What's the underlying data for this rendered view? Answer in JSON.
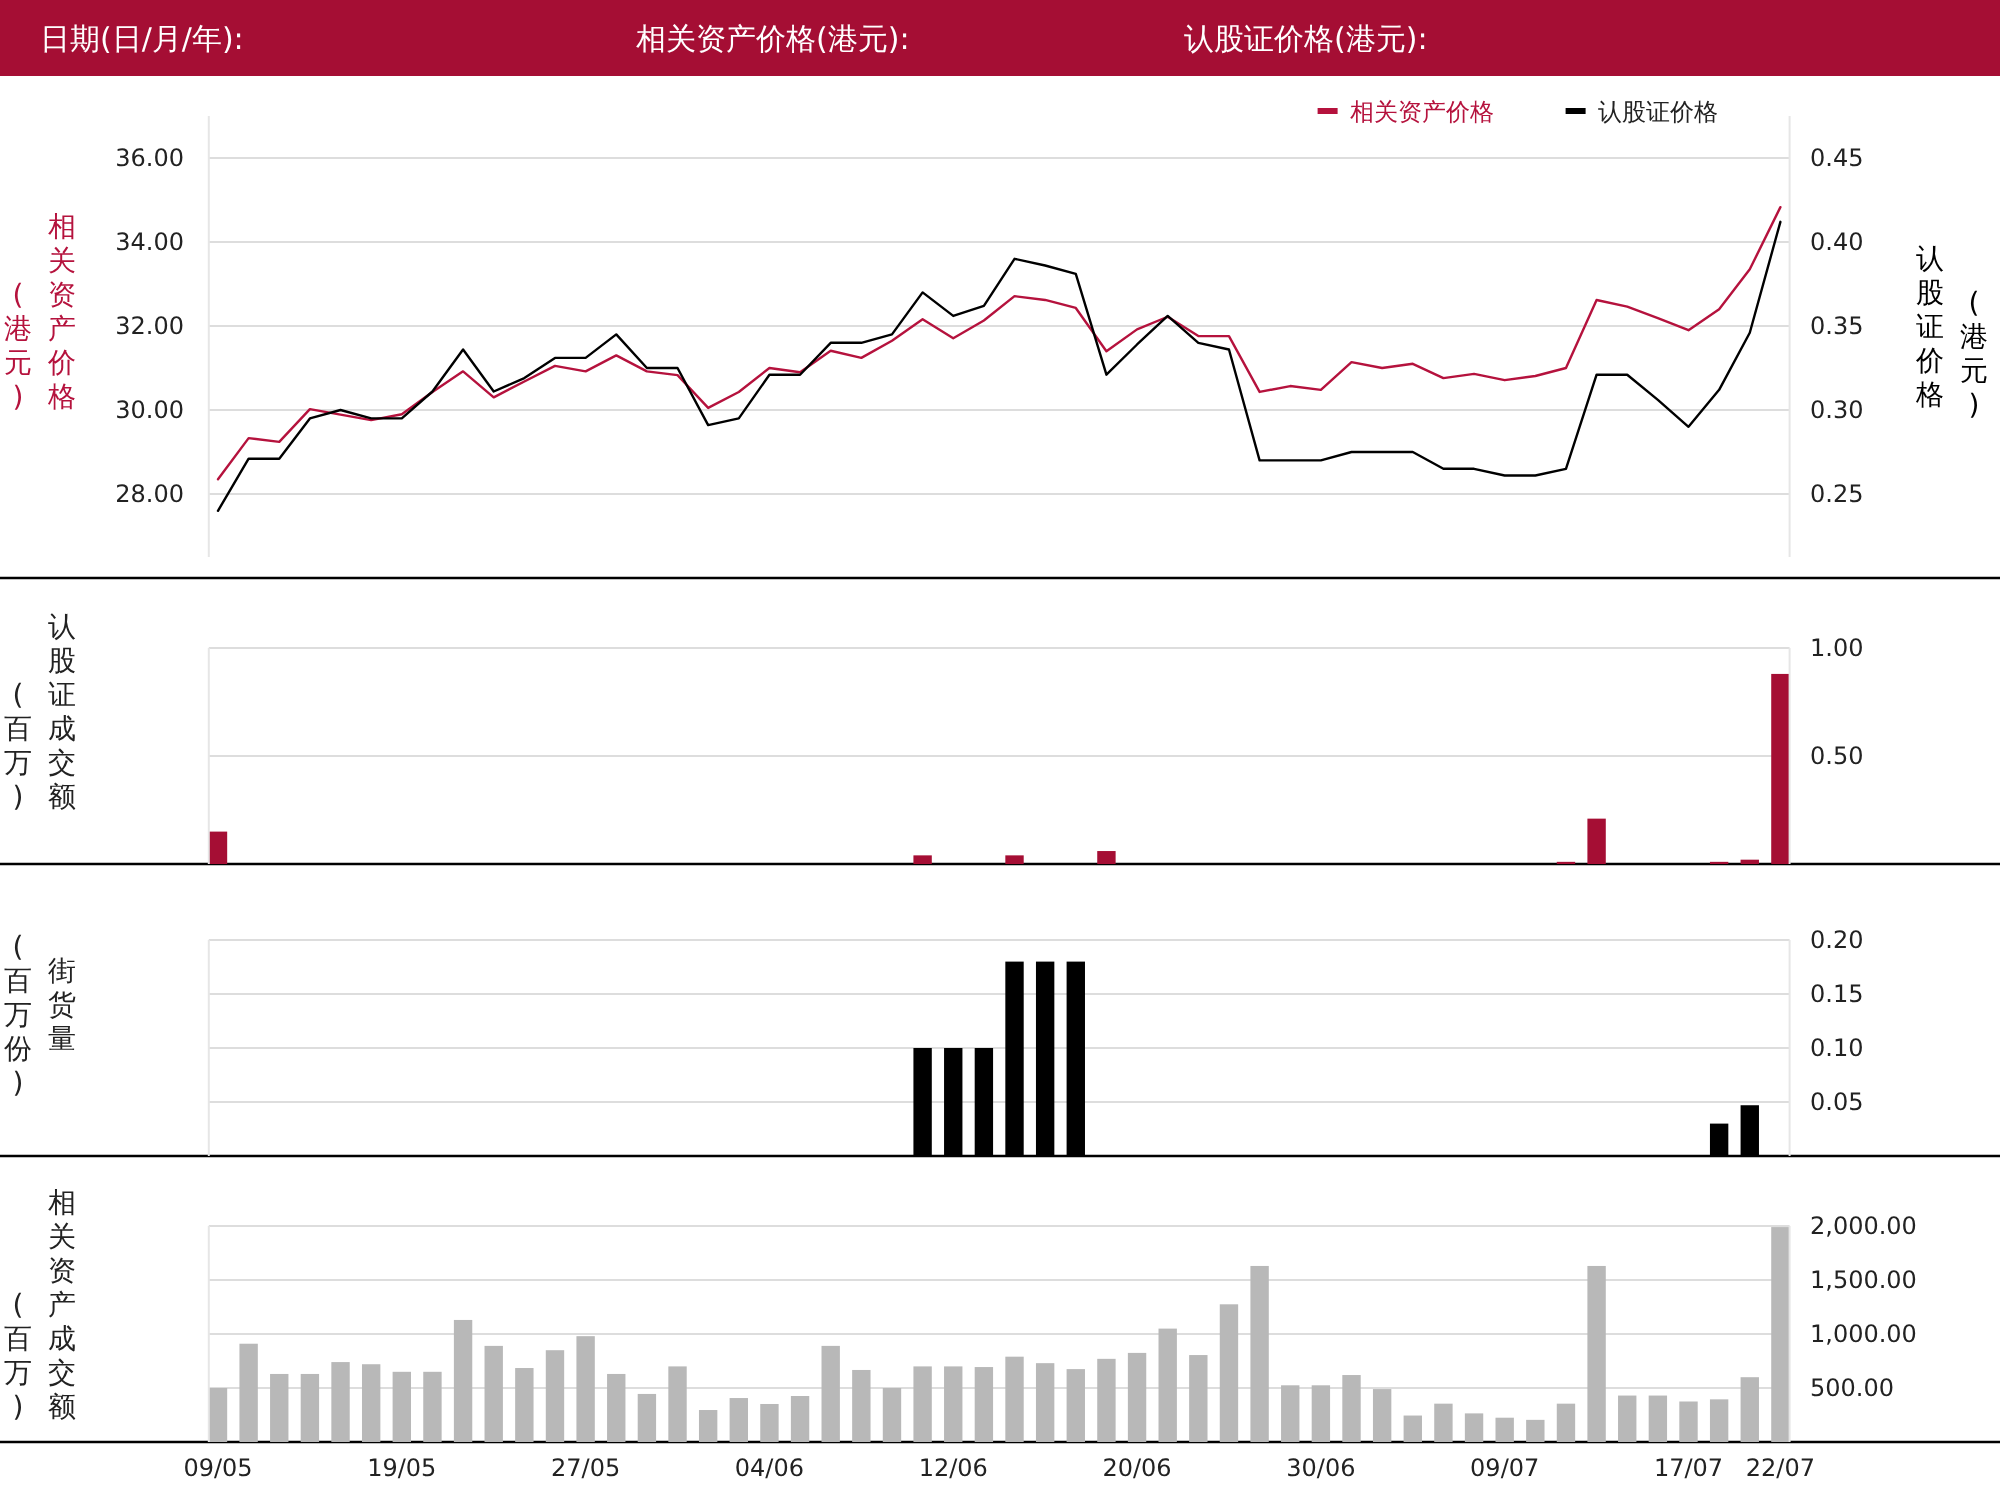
{
  "chart_data": [
    {
      "type": "line",
      "annotations": [
        "日期(日/月/年):",
        "相关资产价格(港元):",
        "认股证价格(港元):"
      ],
      "ylabel": "相关资产价格(港元)",
      "y2label": "认股证价格(港元)",
      "categories": [
        null,
        null,
        null,
        null,
        null,
        null,
        null,
        null,
        null,
        null,
        null,
        null,
        null,
        null,
        null,
        null,
        null,
        null,
        null,
        null,
        null,
        null,
        null,
        null,
        null,
        null,
        null,
        null,
        null,
        null,
        null,
        null,
        null,
        null,
        null,
        null,
        null,
        null,
        null,
        null,
        null,
        null,
        null,
        null,
        null,
        null,
        null,
        null,
        null,
        null,
        null,
        null
      ],
      "series": [
        {
          "name": "相关资产价格",
          "color": "#b5123d",
          "values": [
            28.35,
            29.33,
            29.24,
            30.02,
            29.89,
            29.76,
            29.9,
            30.43,
            30.92,
            30.3,
            30.68,
            31.05,
            30.92,
            31.3,
            30.92,
            30.83,
            30.05,
            30.43,
            31.0,
            30.9,
            31.41,
            31.24,
            31.65,
            32.16,
            31.71,
            32.13,
            32.71,
            32.62,
            32.43,
            31.4,
            31.92,
            32.22,
            31.76,
            31.76,
            30.43,
            30.57,
            30.48,
            31.14,
            31.0,
            31.1,
            30.76,
            30.86,
            30.71,
            30.81,
            31.0,
            32.62,
            32.46,
            32.19,
            31.9,
            32.4,
            33.35,
            34.83
          ]
        },
        {
          "name": "认股证价格",
          "color": "#000000",
          "axis": "y2",
          "values": [
            0.24,
            0.271,
            0.271,
            0.295,
            0.3,
            0.295,
            0.295,
            0.311,
            0.336,
            0.311,
            0.319,
            0.331,
            0.331,
            0.345,
            0.325,
            0.325,
            0.291,
            0.295,
            0.321,
            0.321,
            0.34,
            0.34,
            0.345,
            0.37,
            0.356,
            0.362,
            0.39,
            0.386,
            0.381,
            0.321,
            0.339,
            0.356,
            0.34,
            0.336,
            0.27,
            0.27,
            0.27,
            0.275,
            0.275,
            0.275,
            0.265,
            0.265,
            0.261,
            0.261,
            0.265,
            0.321,
            0.321,
            0.306,
            0.29,
            0.312,
            0.346,
            0.412
          ]
        }
      ],
      "ylim": [
        26.5,
        37
      ],
      "yticks": [
        {
          "value": 28,
          "label": "28.00"
        },
        {
          "value": 30,
          "label": "30.00"
        },
        {
          "value": 32,
          "label": "32.00"
        },
        {
          "value": 34,
          "label": "34.00"
        },
        {
          "value": 36,
          "label": "36.00"
        }
      ],
      "y2lim": [
        0.2125,
        0.475
      ],
      "y2ticks": [
        0.25,
        {
          "value": 0.3,
          "label": "0.30"
        },
        0.35,
        {
          "value": 0.4,
          "label": "0.40"
        },
        0.45
      ],
      "grid": "y",
      "legend": "top right",
      "tick_labels": "y"
    },
    {
      "type": "bar",
      "ylabel": "认股证成交额(百万)",
      "categories": [
        null,
        null,
        null,
        null,
        null,
        null,
        null,
        null,
        null,
        null,
        null,
        null,
        null,
        null,
        null,
        null,
        null,
        null,
        null,
        null,
        null,
        null,
        null,
        null,
        null,
        null,
        null,
        null,
        null,
        null,
        null,
        null,
        null,
        null,
        null,
        null,
        null,
        null,
        null,
        null,
        null,
        null,
        null,
        null,
        null,
        null,
        null,
        null,
        null,
        null,
        null,
        null
      ],
      "series": [
        {
          "color": "#a50e34",
          "values": [
            0.15,
            null,
            null,
            null,
            null,
            null,
            null,
            null,
            null,
            null,
            null,
            null,
            null,
            null,
            null,
            null,
            null,
            null,
            null,
            null,
            null,
            null,
            null,
            0.04,
            null,
            null,
            0.04,
            null,
            null,
            0.06,
            null,
            null,
            null,
            null,
            null,
            null,
            null,
            null,
            null,
            null,
            null,
            null,
            null,
            null,
            0.01,
            0.21,
            null,
            null,
            null,
            0.01,
            0.02,
            0.88
          ]
        }
      ],
      "ylim": [
        0,
        1
      ],
      "yticks": [
        {
          "value": 0.5,
          "label": "0.50"
        },
        {
          "value": 1,
          "label": "1.00"
        }
      ],
      "grid": "y",
      "tick_labels": "y"
    },
    {
      "type": "bar",
      "ylabel": "街货量(百万份)",
      "categories": [
        null,
        null,
        null,
        null,
        null,
        null,
        null,
        null,
        null,
        null,
        null,
        null,
        null,
        null,
        null,
        null,
        null,
        null,
        null,
        null,
        null,
        null,
        null,
        null,
        null,
        null,
        null,
        null,
        null,
        null,
        null,
        null,
        null,
        null,
        null,
        null,
        null,
        null,
        null,
        null,
        null,
        null,
        null,
        null,
        null,
        null,
        null,
        null,
        null,
        null,
        null,
        null
      ],
      "series": [
        {
          "color": "#000000",
          "values": [
            null,
            null,
            null,
            null,
            null,
            null,
            null,
            null,
            null,
            null,
            null,
            null,
            null,
            null,
            null,
            null,
            null,
            null,
            null,
            null,
            null,
            null,
            null,
            0.1,
            0.1,
            0.1,
            0.18,
            0.18,
            0.18,
            null,
            null,
            null,
            null,
            null,
            null,
            null,
            null,
            null,
            null,
            null,
            null,
            null,
            null,
            null,
            null,
            null,
            null,
            null,
            null,
            0.03,
            0.047,
            null
          ]
        }
      ],
      "ylim": [
        0,
        0.2
      ],
      "yticks": [
        0.05,
        {
          "value": 0.1,
          "label": "0.10"
        },
        0.15,
        {
          "value": 0.2,
          "label": "0.20"
        }
      ],
      "grid": "y",
      "tick_labels": "y"
    },
    {
      "type": "bar",
      "ylabel": "相关资产成交额(百万)",
      "categories": [
        "09/05",
        null,
        null,
        null,
        null,
        null,
        "19/05",
        null,
        null,
        null,
        null,
        null,
        "27/05",
        null,
        null,
        null,
        null,
        null,
        "04/06",
        null,
        null,
        null,
        null,
        null,
        "12/06",
        null,
        null,
        null,
        null,
        null,
        "20/06",
        null,
        null,
        null,
        null,
        null,
        "30/06",
        null,
        null,
        null,
        null,
        null,
        "09/07",
        null,
        null,
        null,
        null,
        null,
        "17/07",
        null,
        null,
        "22/07"
      ],
      "series": [
        {
          "color": "#b8b8b8",
          "values": [
            500,
            910,
            630,
            630,
            740,
            720,
            650,
            650,
            1130,
            890,
            685,
            850,
            980,
            630,
            445,
            700,
            296,
            407,
            352,
            426,
            890,
            667,
            500,
            700,
            700,
            694,
            790,
            730,
            675,
            770,
            825,
            1050,
            805,
            1275,
            1630,
            525,
            525,
            620,
            490,
            245,
            355,
            265,
            225,
            205,
            355,
            1630,
            430,
            430,
            375,
            395,
            600,
            1990
          ]
        }
      ],
      "ylim": [
        0,
        2000
      ],
      "yticks": [
        {
          "value": 500,
          "label": "500.00"
        },
        {
          "value": 1000,
          "label": "1,000.00"
        },
        {
          "value": 1500,
          "label": "1,500.00"
        },
        {
          "value": 2000,
          "label": "2,000.00"
        }
      ],
      "grid": "y"
    }
  ]
}
